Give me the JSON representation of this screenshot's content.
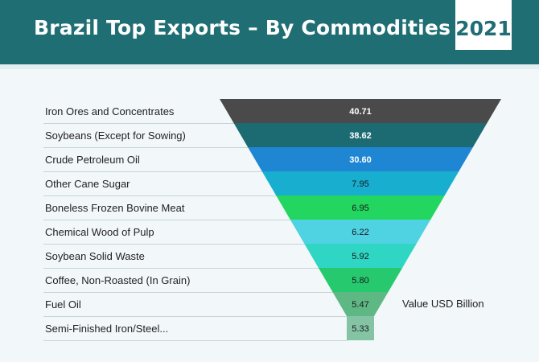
{
  "header": {
    "title": "Brazil Top Exports – By Commodities",
    "year": "2021",
    "background_color": "#1f6e73"
  },
  "chart_data": {
    "type": "bar",
    "style": "funnel",
    "title": "Brazil Top Exports – By Commodities 2021",
    "value_label": "Value USD Billion",
    "categories": [
      "Iron Ores and Concentrates",
      "Soybeans (Except for Sowing)",
      "Crude Petroleum Oil",
      "Other Cane Sugar",
      "Boneless Frozen Bovine Meat",
      "Chemical Wood of Pulp",
      "Soybean Solid Waste",
      "Coffee, Non-Roasted (In Grain)",
      "Fuel Oil",
      "Semi-Finished Iron/Steel..."
    ],
    "values": [
      40.71,
      38.62,
      30.6,
      7.95,
      6.95,
      6.22,
      5.92,
      5.8,
      5.47,
      5.33
    ],
    "value_labels": [
      "40.71",
      "38.62",
      "30.60",
      "7.95",
      "6.95",
      "6.22",
      "5.92",
      "5.80",
      "5.47",
      "5.33"
    ],
    "colors": [
      "#4a4a4a",
      "#1d6b72",
      "#1f86d3",
      "#17aed0",
      "#22d660",
      "#4fd2e2",
      "#2fd6c3",
      "#27c96f",
      "#5eb883",
      "#84c4a5"
    ],
    "label_colors": [
      "#ffffff",
      "#ffffff",
      "#ffffff",
      "#1a1a1a",
      "#1a1a1a",
      "#1a1a1a",
      "#1a1a1a",
      "#1a1a1a",
      "#1a1a1a",
      "#1a1a1a"
    ]
  }
}
